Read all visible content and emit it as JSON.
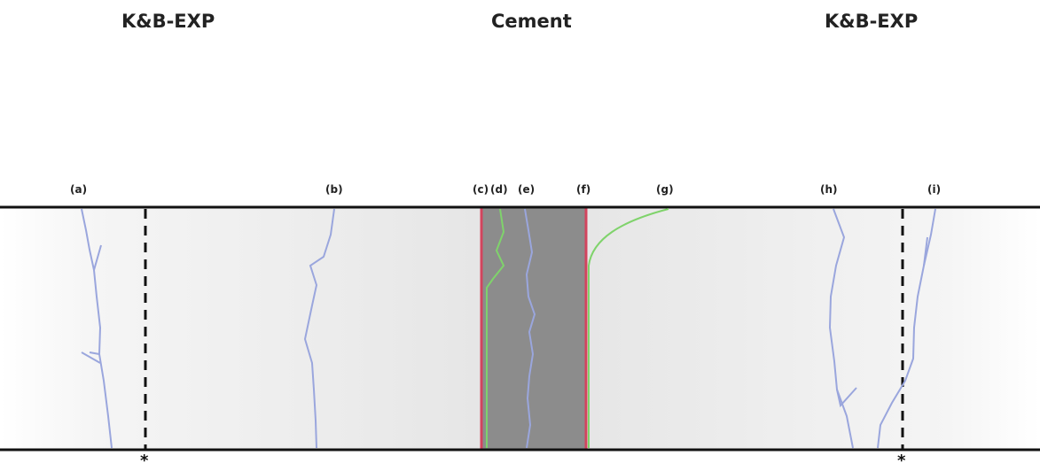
{
  "headers": {
    "left": "K&B-EXP",
    "center": "Cement",
    "right": "K&B-EXP"
  },
  "labels": {
    "a": "(a)",
    "b": "(b)",
    "c": "(c)",
    "d": "(d)",
    "e": "(e)",
    "f": "(f)",
    "g": "(g)",
    "h": "(h)",
    "i": "(i)"
  },
  "markers": {
    "left_star": "*",
    "right_star": "*"
  },
  "colors": {
    "boundary": "#111111",
    "cement": "#8c8c8c",
    "cement_edge": "#d2445e",
    "crack": "#9aa6dd",
    "interface_curve": "#7fd36b",
    "dashed": "#111111"
  }
}
